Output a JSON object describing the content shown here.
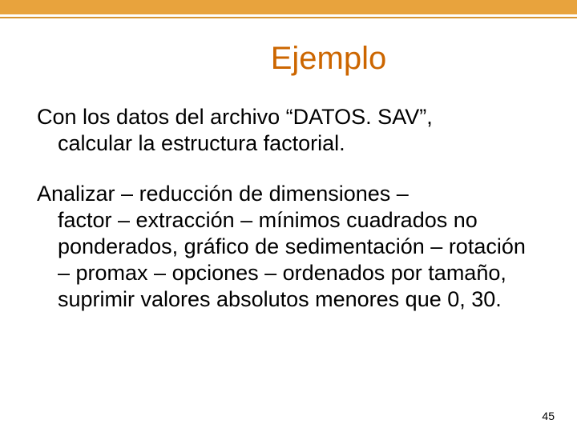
{
  "colors": {
    "accent_bar": "#e8a33d",
    "accent_underline": "#d89530",
    "title_color": "#cc6600",
    "body_color": "#000000",
    "background": "#ffffff"
  },
  "typography": {
    "title_fontsize": 40,
    "body_fontsize": 27,
    "pagenum_fontsize": 14
  },
  "title": "Ejemplo",
  "para1_line1": "Con los datos del archivo “DATOS. SAV”,",
  "para1_rest": "calcular la estructura factorial.",
  "para2_line1": "Analizar – reducción de dimensiones –",
  "para2_rest": "factor – extracción – mínimos cuadrados no ponderados, gráfico de sedimentación – rotación – promax – opciones – ordenados por tamaño, suprimir valores absolutos menores que 0, 30.",
  "page_number": "45"
}
